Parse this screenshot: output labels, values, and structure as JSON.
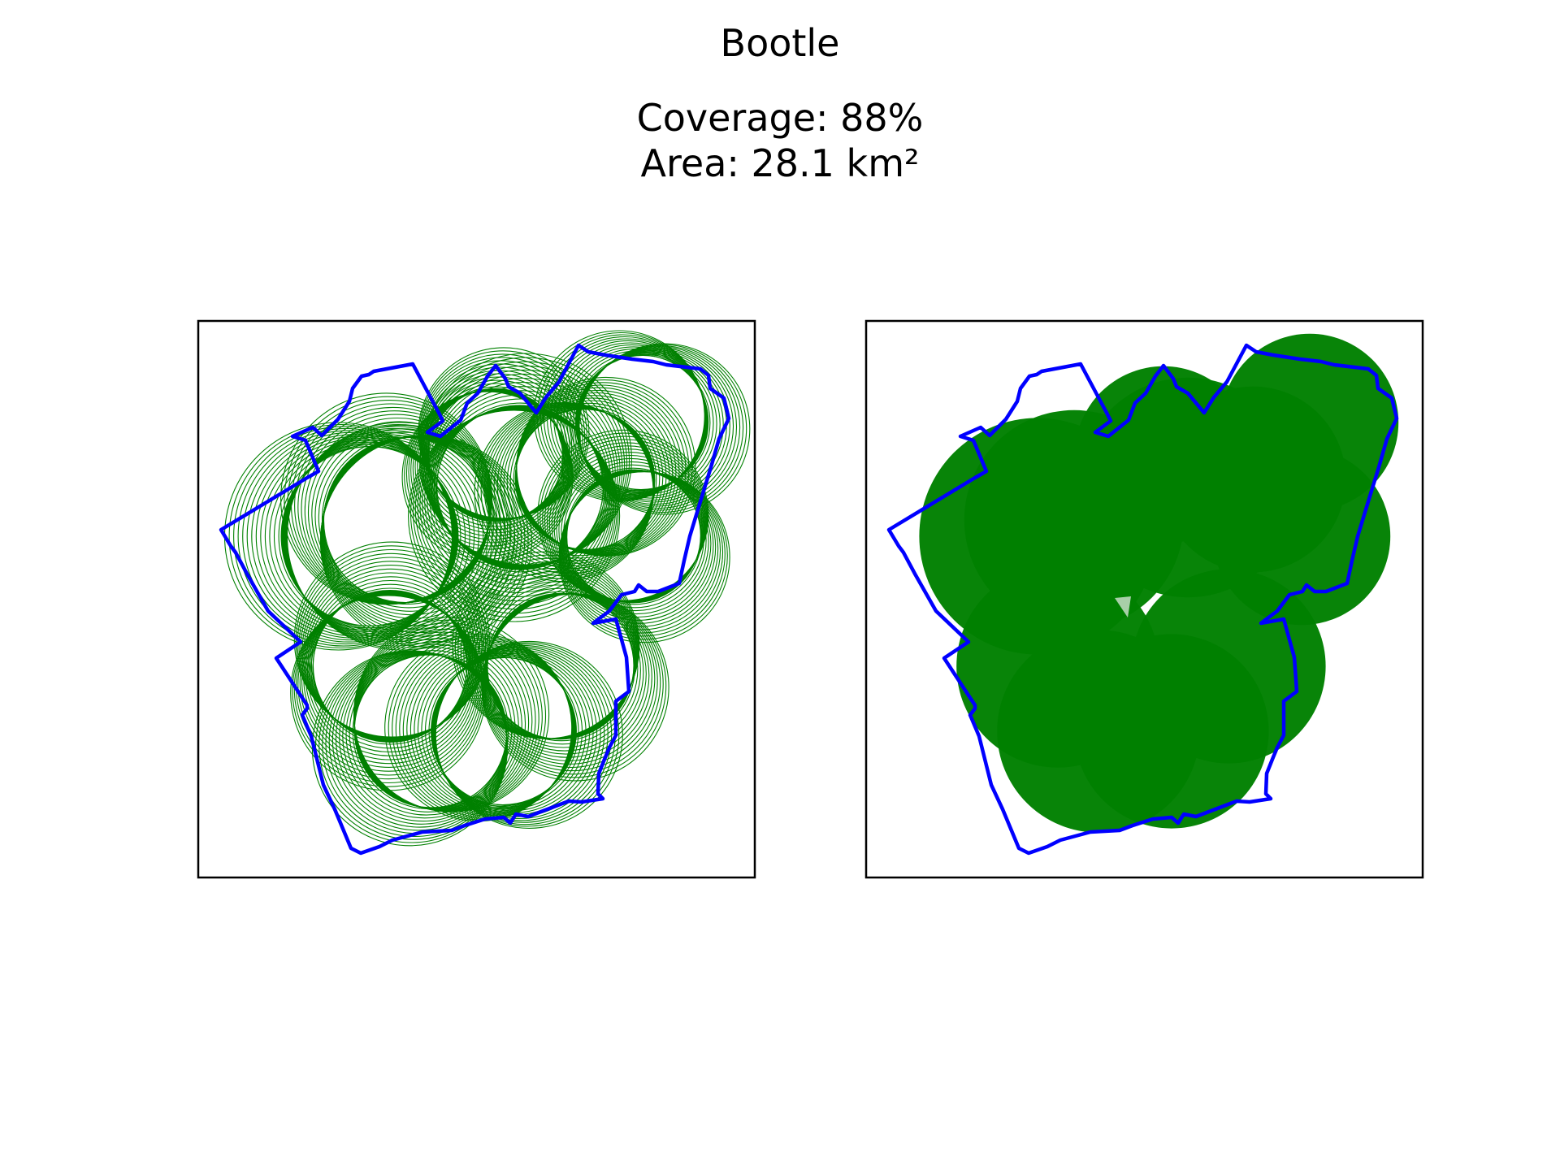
{
  "figure": {
    "title": "Bootle",
    "coverage_text": "Coverage: 88%",
    "area_text": "Area: 28.1 km²"
  },
  "colors": {
    "boundary": "#0000ff",
    "coverage": "#008000",
    "frame": "#000000",
    "background": "#ffffff"
  },
  "panels": [
    {
      "style": "outline-rings",
      "description_name": "left-map-panel"
    },
    {
      "style": "filled-discs",
      "description_name": "right-map-panel"
    }
  ]
}
